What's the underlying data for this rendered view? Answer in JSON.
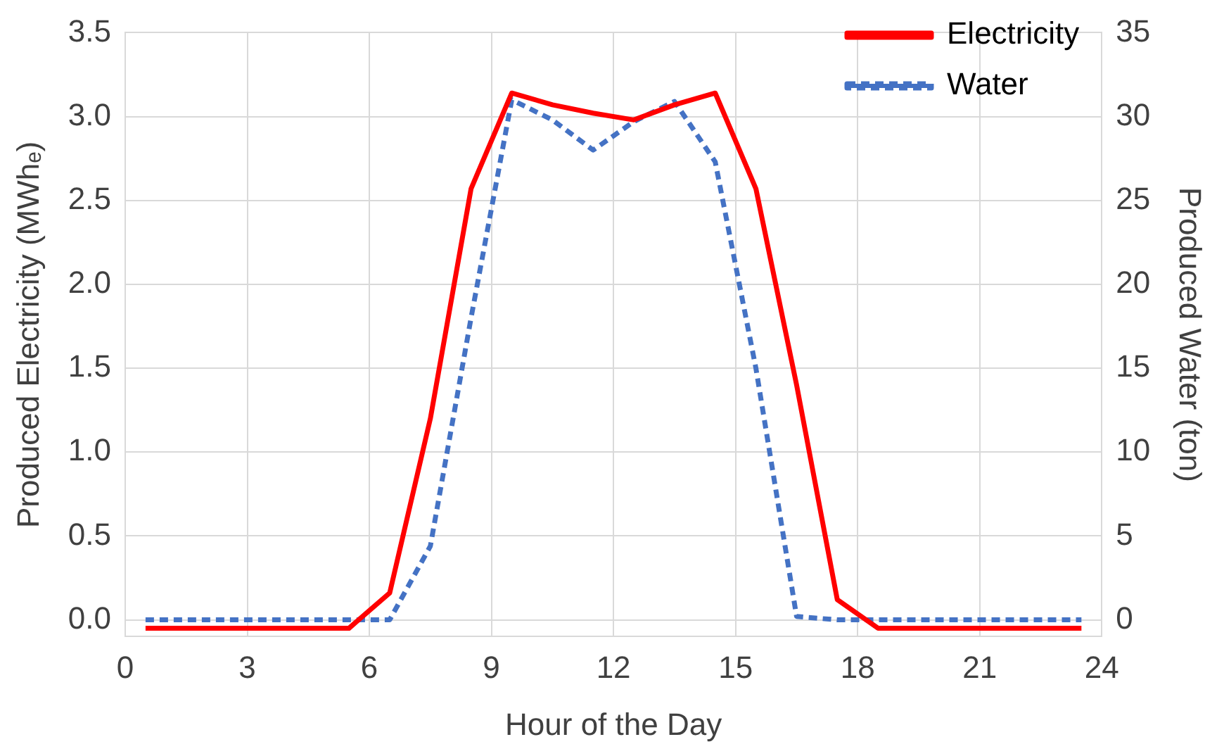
{
  "chart_data": {
    "type": "line",
    "xlabel": "Hour of the Day",
    "ylabel": "Produced Electricity (MWhₑ)",
    "y2label": "Produced Water (ton)",
    "x": [
      0.5,
      1.5,
      2.5,
      3.5,
      4.5,
      5.5,
      6.5,
      7.5,
      8.5,
      9.5,
      10.5,
      11.5,
      12.5,
      13.5,
      14.5,
      15.5,
      16.5,
      17.5,
      18.5,
      19.5,
      20.5,
      21.5,
      22.5,
      23.5
    ],
    "series": [
      {
        "name": "Electricity",
        "color": "#ff0000",
        "line_style": "solid",
        "values": [
          -0.05,
          -0.05,
          -0.05,
          -0.05,
          -0.05,
          -0.05,
          0.16,
          1.2,
          2.57,
          3.14,
          3.07,
          3.02,
          2.98,
          3.07,
          3.14,
          2.57,
          1.4,
          0.12,
          -0.05,
          -0.05,
          -0.05,
          -0.05,
          -0.05,
          -0.05
        ]
      },
      {
        "name": "Water",
        "color": "#4472c4",
        "line_style": "dashed",
        "axis": "y2",
        "values": [
          0,
          0,
          0,
          0,
          0,
          0,
          0,
          4.4,
          18,
          31,
          29.8,
          28,
          29.7,
          30.9,
          27.3,
          15,
          0.2,
          0,
          0,
          0,
          0,
          0,
          0,
          0
        ]
      }
    ],
    "xlim": [
      0,
      24
    ],
    "xticks": [
      0,
      3,
      6,
      9,
      12,
      15,
      18,
      21,
      24
    ],
    "ylim": [
      -0.1,
      3.5
    ],
    "yticks": [
      {
        "value": 0,
        "label": "0.0"
      },
      0.5,
      {
        "value": 1,
        "label": "1.0"
      },
      1.5,
      {
        "value": 2,
        "label": "2.0"
      },
      2.5,
      {
        "value": 3,
        "label": "3.0"
      },
      3.5
    ],
    "y2lim": [
      -1,
      35
    ],
    "y2ticks": [
      0,
      5,
      10,
      15,
      20,
      25,
      30,
      35
    ],
    "grid": true,
    "legend": "top right",
    "marker": "none"
  }
}
